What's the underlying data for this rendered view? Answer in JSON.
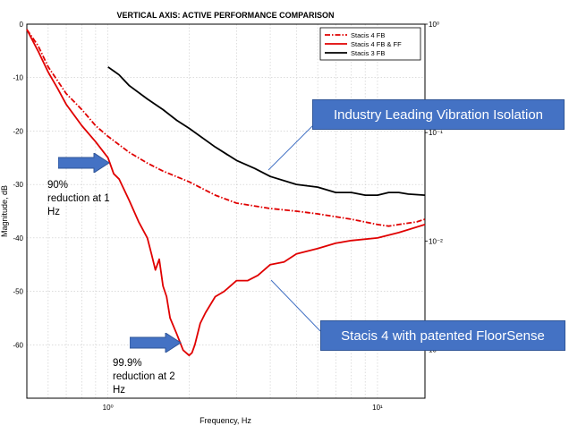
{
  "chart_data": {
    "type": "line",
    "title": "VERTICAL AXIS: ACTIVE PERFORMANCE COMPARISON",
    "xlabel": "Frequency, Hz",
    "ylabel": "Magnitude, dB",
    "xscale": "log",
    "xlim": [
      0.5,
      15
    ],
    "ylim": [
      -70,
      0
    ],
    "x_ticks": [
      1,
      10
    ],
    "x_tick_labels": [
      "10⁰",
      "10¹"
    ],
    "y_ticks": [
      0,
      -10,
      -20,
      -30,
      -40,
      -50,
      -60
    ],
    "y_tick_labels": [
      "0",
      "-10",
      "-20",
      "-30",
      "-40",
      "-50",
      "-60"
    ],
    "right_axis": {
      "scale": "log",
      "ticks": [
        1,
        0.1,
        0.01,
        0.001
      ],
      "tick_labels": [
        "10⁰",
        "10⁻¹",
        "10⁻²",
        "10⁻³"
      ]
    },
    "grid": true,
    "legend_position": "top-right",
    "series": [
      {
        "name": "Stacis 4 FB",
        "color": "#e00000",
        "line_style": "dash-dot",
        "x": [
          0.5,
          0.55,
          0.6,
          0.7,
          0.8,
          0.9,
          1.0,
          1.2,
          1.4,
          1.6,
          2.0,
          2.5,
          3.0,
          4.0,
          5.0,
          6.0,
          8.0,
          10.0,
          11.0,
          12.0,
          14.0,
          15.0
        ],
        "y": [
          -1,
          -4,
          -8,
          -13,
          -16,
          -19,
          -21,
          -24,
          -26,
          -27.5,
          -29.5,
          -32,
          -33.5,
          -34.5,
          -35,
          -35.5,
          -36.5,
          -37.5,
          -37.8,
          -37.5,
          -37,
          -36.5
        ]
      },
      {
        "name": "Stacis 4 FB & FF",
        "color": "#e00000",
        "line_style": "solid",
        "x": [
          0.5,
          0.55,
          0.6,
          0.65,
          0.7,
          0.8,
          0.9,
          1.0,
          1.05,
          1.1,
          1.2,
          1.3,
          1.4,
          1.45,
          1.5,
          1.55,
          1.6,
          1.65,
          1.7,
          1.8,
          1.9,
          2.0,
          2.05,
          2.1,
          2.2,
          2.3,
          2.5,
          2.7,
          3.0,
          3.3,
          3.6,
          4.0,
          4.5,
          5.0,
          6.0,
          7.0,
          8.0,
          10.0,
          12.0,
          15.0
        ],
        "y": [
          -1,
          -5,
          -9,
          -12,
          -15,
          -19,
          -22,
          -25,
          -28,
          -29,
          -33,
          -37,
          -40,
          -43,
          -46,
          -44,
          -49,
          -51,
          -55,
          -58,
          -61,
          -62,
          -61.5,
          -60,
          -56,
          -54,
          -51,
          -50,
          -48,
          -48,
          -47,
          -45,
          -44.5,
          -43,
          -42,
          -41,
          -40.5,
          -40,
          -39,
          -37.5
        ]
      },
      {
        "name": "Stacis 3 FB",
        "color": "#000000",
        "line_style": "solid",
        "x": [
          1.0,
          1.1,
          1.2,
          1.4,
          1.6,
          1.8,
          2.0,
          2.5,
          3.0,
          3.5,
          4.0,
          5.0,
          6.0,
          7.0,
          8.0,
          9.0,
          10.0,
          11.0,
          12.0,
          13.0,
          15.0
        ],
        "y": [
          -8,
          -9.5,
          -11.5,
          -14,
          -16,
          -18,
          -19.5,
          -23,
          -25.5,
          -27,
          -28.5,
          -30,
          -30.5,
          -31.5,
          -31.5,
          -32,
          -32,
          -31.5,
          -31.5,
          -31.8,
          -32
        ]
      }
    ]
  },
  "callouts": {
    "top": "Industry Leading Vibration Isolation",
    "bottom": "Stacis 4 with patented FloorSense"
  },
  "notes": {
    "one_hz_line1": "90%",
    "one_hz_line2": "reduction at 1",
    "one_hz_line3": "Hz",
    "two_hz_line1": "99.9%",
    "two_hz_line2": "reduction at 2",
    "two_hz_line3": "Hz"
  },
  "colors": {
    "callout_fill": "#4472c4",
    "arrow_fill": "#4472c4"
  }
}
